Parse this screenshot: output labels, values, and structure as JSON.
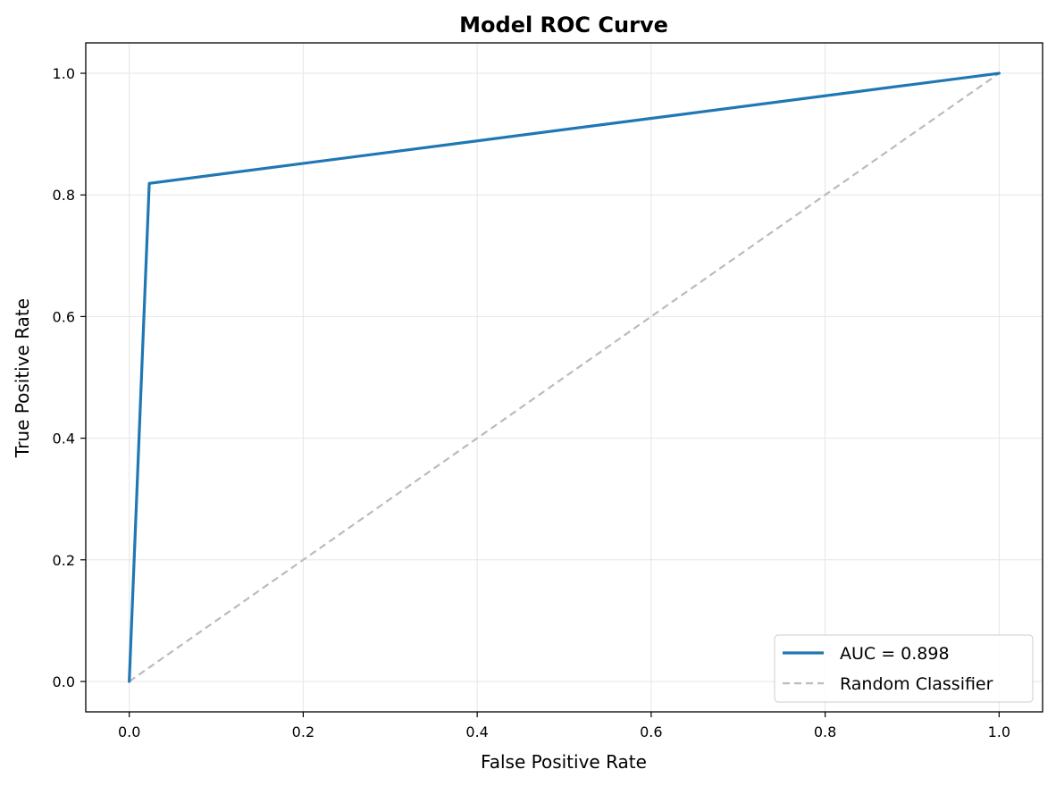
{
  "chart_data": {
    "type": "line",
    "title": "Model ROC Curve",
    "xlabel": "False Positive Rate",
    "ylabel": "True Positive Rate",
    "xlim": [
      -0.05,
      1.05
    ],
    "ylim": [
      -0.05,
      1.05
    ],
    "xticks": [
      0.0,
      0.2,
      0.4,
      0.6,
      0.8,
      1.0
    ],
    "yticks": [
      0.0,
      0.2,
      0.4,
      0.6,
      0.8,
      1.0
    ],
    "xtick_labels": [
      "0.0",
      "0.2",
      "0.4",
      "0.6",
      "0.8",
      "1.0"
    ],
    "ytick_labels": [
      "0.0",
      "0.2",
      "0.4",
      "0.6",
      "0.8",
      "1.0"
    ],
    "grid": true,
    "legend_position": "lower-right",
    "series": [
      {
        "name": "AUC = 0.898",
        "x": [
          0.0,
          0.023,
          1.0
        ],
        "y": [
          0.0,
          0.819,
          1.0
        ],
        "color": "#1f77b4",
        "style": "solid"
      },
      {
        "name": "Random Classifier",
        "x": [
          0.0,
          1.0
        ],
        "y": [
          0.0,
          1.0
        ],
        "color": "#bbbbbb",
        "style": "dashed"
      }
    ]
  }
}
